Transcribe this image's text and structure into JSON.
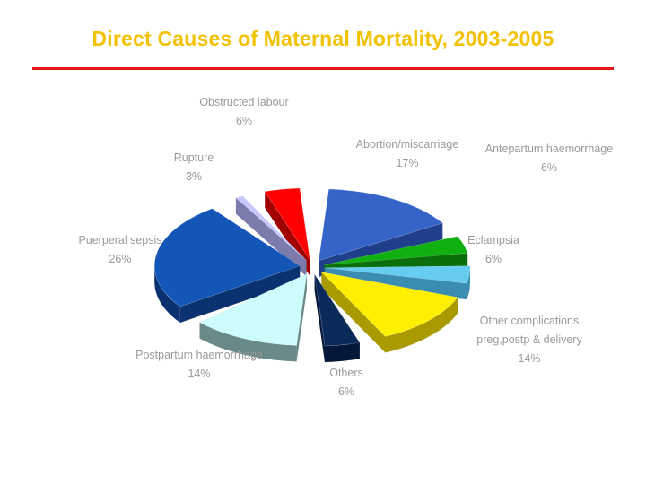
{
  "title": "Direct Causes of Maternal Mortality, 2003-2005",
  "colors": {
    "title": "#f2c200",
    "rule": "#e81818",
    "labels": "#9a9a9a"
  },
  "chart_data": {
    "type": "pie",
    "title": "Direct Causes of Maternal Mortality, 2003-2005",
    "slices": [
      {
        "label": [
          "Abortion/miscarriage"
        ],
        "percent": "17%",
        "value": 17,
        "color": "#3464c8",
        "side": "#1f3f8a"
      },
      {
        "label": [
          "Antepartum haemorrhage"
        ],
        "percent": "6%",
        "value": 6,
        "color": "#10b010",
        "side": "#0a6e0a"
      },
      {
        "label": [
          "Eclampsia"
        ],
        "percent": "6%",
        "value": 6,
        "color": "#66ccf0",
        "side": "#3a8cb0"
      },
      {
        "label": [
          "Other complications",
          "preg,postp & delivery"
        ],
        "percent": "14%",
        "value": 14,
        "color": "#ffef00",
        "side": "#a89a00"
      },
      {
        "label": [
          "Others"
        ],
        "percent": "6%",
        "value": 6,
        "color": "#0a2a5a",
        "side": "#06183a"
      },
      {
        "label": [
          "Postpartum haemorrhage"
        ],
        "percent": "14%",
        "value": 14,
        "color": "#ccfcfc",
        "side": "#6a8a8a"
      },
      {
        "label": [
          "Puerperal sepsis"
        ],
        "percent": "26%",
        "value": 26,
        "color": "#1456b8",
        "side": "#0b3270"
      },
      {
        "label": [
          "Rupture"
        ],
        "percent": "3%",
        "value": 3,
        "color": "#c8c8ff",
        "side": "#7c7cac"
      },
      {
        "label": [
          "Obstructed labour"
        ],
        "percent": "6%",
        "value": 6,
        "color": "#ff0000",
        "side": "#a00000"
      }
    ]
  }
}
